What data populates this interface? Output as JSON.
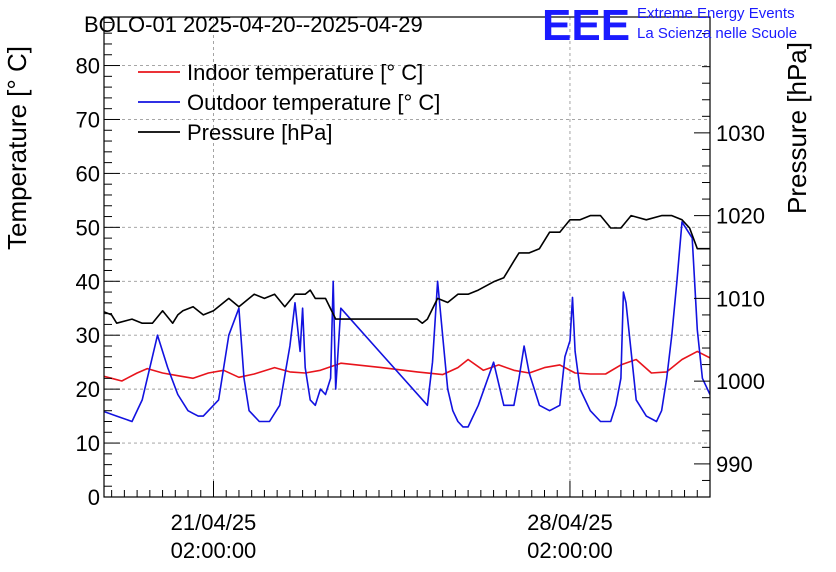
{
  "chart_data": {
    "type": "line",
    "title": "BOLO-01 2025-04-20--2025-04-29",
    "ylabel": "Temperature [° C]",
    "y2label": "Pressure [hPa]",
    "ylim": [
      0,
      89
    ],
    "y2lim": [
      986,
      1044
    ],
    "y_ticks": [
      0,
      10,
      20,
      30,
      40,
      50,
      60,
      70,
      80
    ],
    "y2_ticks": [
      990,
      1000,
      1010,
      1020,
      1030
    ],
    "x_ticks": [
      {
        "x": 1,
        "date": "21/04/25",
        "time": "02:00:00"
      },
      {
        "x": 8,
        "date": "28/04/25",
        "time": "02:00:00"
      }
    ],
    "xlim": [
      -1.15,
      10.75
    ],
    "grid": true,
    "legend_position": "top-left",
    "series": [
      {
        "name": "Indoor temperature [° C]",
        "color": "#e8141c",
        "axis": "left",
        "x": [
          -1.2,
          -1.0,
          -0.8,
          -0.5,
          -0.3,
          0.0,
          0.3,
          0.6,
          0.9,
          1.2,
          1.5,
          1.8,
          2.2,
          2.5,
          2.8,
          3.1,
          3.5,
          4.3,
          5.0,
          5.5,
          5.8,
          6.0,
          6.3,
          6.6,
          6.9,
          7.2,
          7.5,
          7.8,
          8.1,
          8.4,
          8.7,
          9.0,
          9.3,
          9.6,
          9.9,
          10.2,
          10.5,
          10.75
        ],
        "y": [
          22.5,
          22.0,
          21.5,
          23.0,
          23.8,
          23.0,
          22.5,
          22.0,
          23.0,
          23.5,
          22.2,
          22.8,
          24.0,
          23.2,
          23.0,
          23.5,
          24.8,
          24.0,
          23.2,
          22.7,
          24.0,
          25.5,
          23.5,
          24.5,
          23.5,
          23.0,
          24.0,
          24.5,
          23.0,
          22.8,
          22.8,
          24.5,
          25.5,
          23.0,
          23.2,
          25.5,
          27.0,
          25.8
        ]
      },
      {
        "name": "Outdoor temperature [° C]",
        "color": "#1212e0",
        "axis": "left",
        "x": [
          -1.2,
          -0.9,
          -0.6,
          -0.4,
          -0.3,
          -0.2,
          -0.1,
          0.1,
          0.3,
          0.5,
          0.6,
          0.7,
          0.8,
          0.9,
          1.1,
          1.3,
          1.5,
          1.6,
          1.7,
          1.9,
          2.1,
          2.3,
          2.5,
          2.6,
          2.7,
          2.75,
          2.8,
          2.9,
          3.0,
          3.1,
          3.2,
          3.3,
          3.35,
          3.4,
          3.5,
          5.2,
          5.3,
          5.4,
          5.5,
          5.6,
          5.7,
          5.8,
          5.9,
          6.0,
          6.2,
          6.5,
          6.7,
          6.9,
          7.0,
          7.1,
          7.2,
          7.4,
          7.6,
          7.8,
          7.9,
          8.0,
          8.05,
          8.1,
          8.2,
          8.4,
          8.6,
          8.8,
          8.9,
          9.0,
          9.05,
          9.1,
          9.3,
          9.5,
          9.7,
          9.8,
          9.9,
          10.0,
          10.1,
          10.2,
          10.4,
          10.5,
          10.6,
          10.75
        ],
        "y": [
          16.0,
          15.0,
          14.0,
          18.0,
          22.0,
          26.0,
          30.0,
          24.0,
          19.0,
          16.0,
          15.5,
          15.0,
          15.0,
          16.0,
          18.0,
          30.0,
          35.0,
          22.0,
          16.0,
          14.0,
          14.0,
          17.0,
          28.0,
          36.0,
          27.0,
          35.0,
          24.0,
          18.0,
          17.0,
          20.0,
          19.0,
          22.0,
          40.0,
          20.0,
          35.0,
          17.0,
          25.0,
          40.0,
          30.0,
          20.0,
          16.0,
          14.0,
          13.0,
          13.0,
          17.0,
          25.0,
          17.0,
          17.0,
          22.0,
          28.0,
          23.0,
          17.0,
          16.0,
          17.0,
          26.0,
          29.0,
          37.0,
          27.0,
          20.0,
          16.0,
          14.0,
          14.0,
          17.0,
          22.0,
          38.0,
          36.0,
          18.0,
          15.0,
          14.0,
          16.0,
          22.0,
          30.0,
          40.0,
          51.0,
          48.0,
          31.0,
          22.0,
          19.0
        ]
      },
      {
        "name": "Pressure [hPa]",
        "color": "#000000",
        "axis": "right",
        "x": [
          -1.2,
          -1.0,
          -0.9,
          -0.6,
          -0.4,
          -0.2,
          0.0,
          0.2,
          0.3,
          0.4,
          0.6,
          0.8,
          1.0,
          1.2,
          1.3,
          1.5,
          1.7,
          1.8,
          2.0,
          2.2,
          2.4,
          2.6,
          2.8,
          2.9,
          3.0,
          3.2,
          3.4,
          5.0,
          5.1,
          5.2,
          5.4,
          5.6,
          5.8,
          6.0,
          6.2,
          6.5,
          6.7,
          6.9,
          7.0,
          7.2,
          7.4,
          7.6,
          7.8,
          8.0,
          8.2,
          8.4,
          8.6,
          8.8,
          9.0,
          9.2,
          9.5,
          9.8,
          10.0,
          10.2,
          10.35,
          10.5,
          10.75
        ],
        "y": [
          1008.5,
          1008.0,
          1007.0,
          1007.5,
          1007.0,
          1007.0,
          1008.5,
          1007.0,
          1008.0,
          1008.5,
          1009.0,
          1008.0,
          1008.5,
          1009.5,
          1010.0,
          1009.0,
          1010.0,
          1010.5,
          1010.0,
          1010.5,
          1009.0,
          1010.5,
          1010.5,
          1011.0,
          1010.0,
          1010.0,
          1007.5,
          1007.5,
          1007.0,
          1007.5,
          1010.0,
          1009.5,
          1010.5,
          1010.5,
          1011.0,
          1012.0,
          1012.5,
          1014.5,
          1015.5,
          1015.5,
          1016.0,
          1018.0,
          1018.0,
          1019.5,
          1019.5,
          1020.0,
          1020.0,
          1018.5,
          1018.5,
          1020.0,
          1019.5,
          1020.0,
          1020.0,
          1019.5,
          1018.5,
          1016.0,
          1016.0
        ]
      }
    ]
  },
  "logo": {
    "mark": "EEE",
    "line1": "Extreme Energy Events",
    "line2": "La Scienza nelle Scuole"
  }
}
